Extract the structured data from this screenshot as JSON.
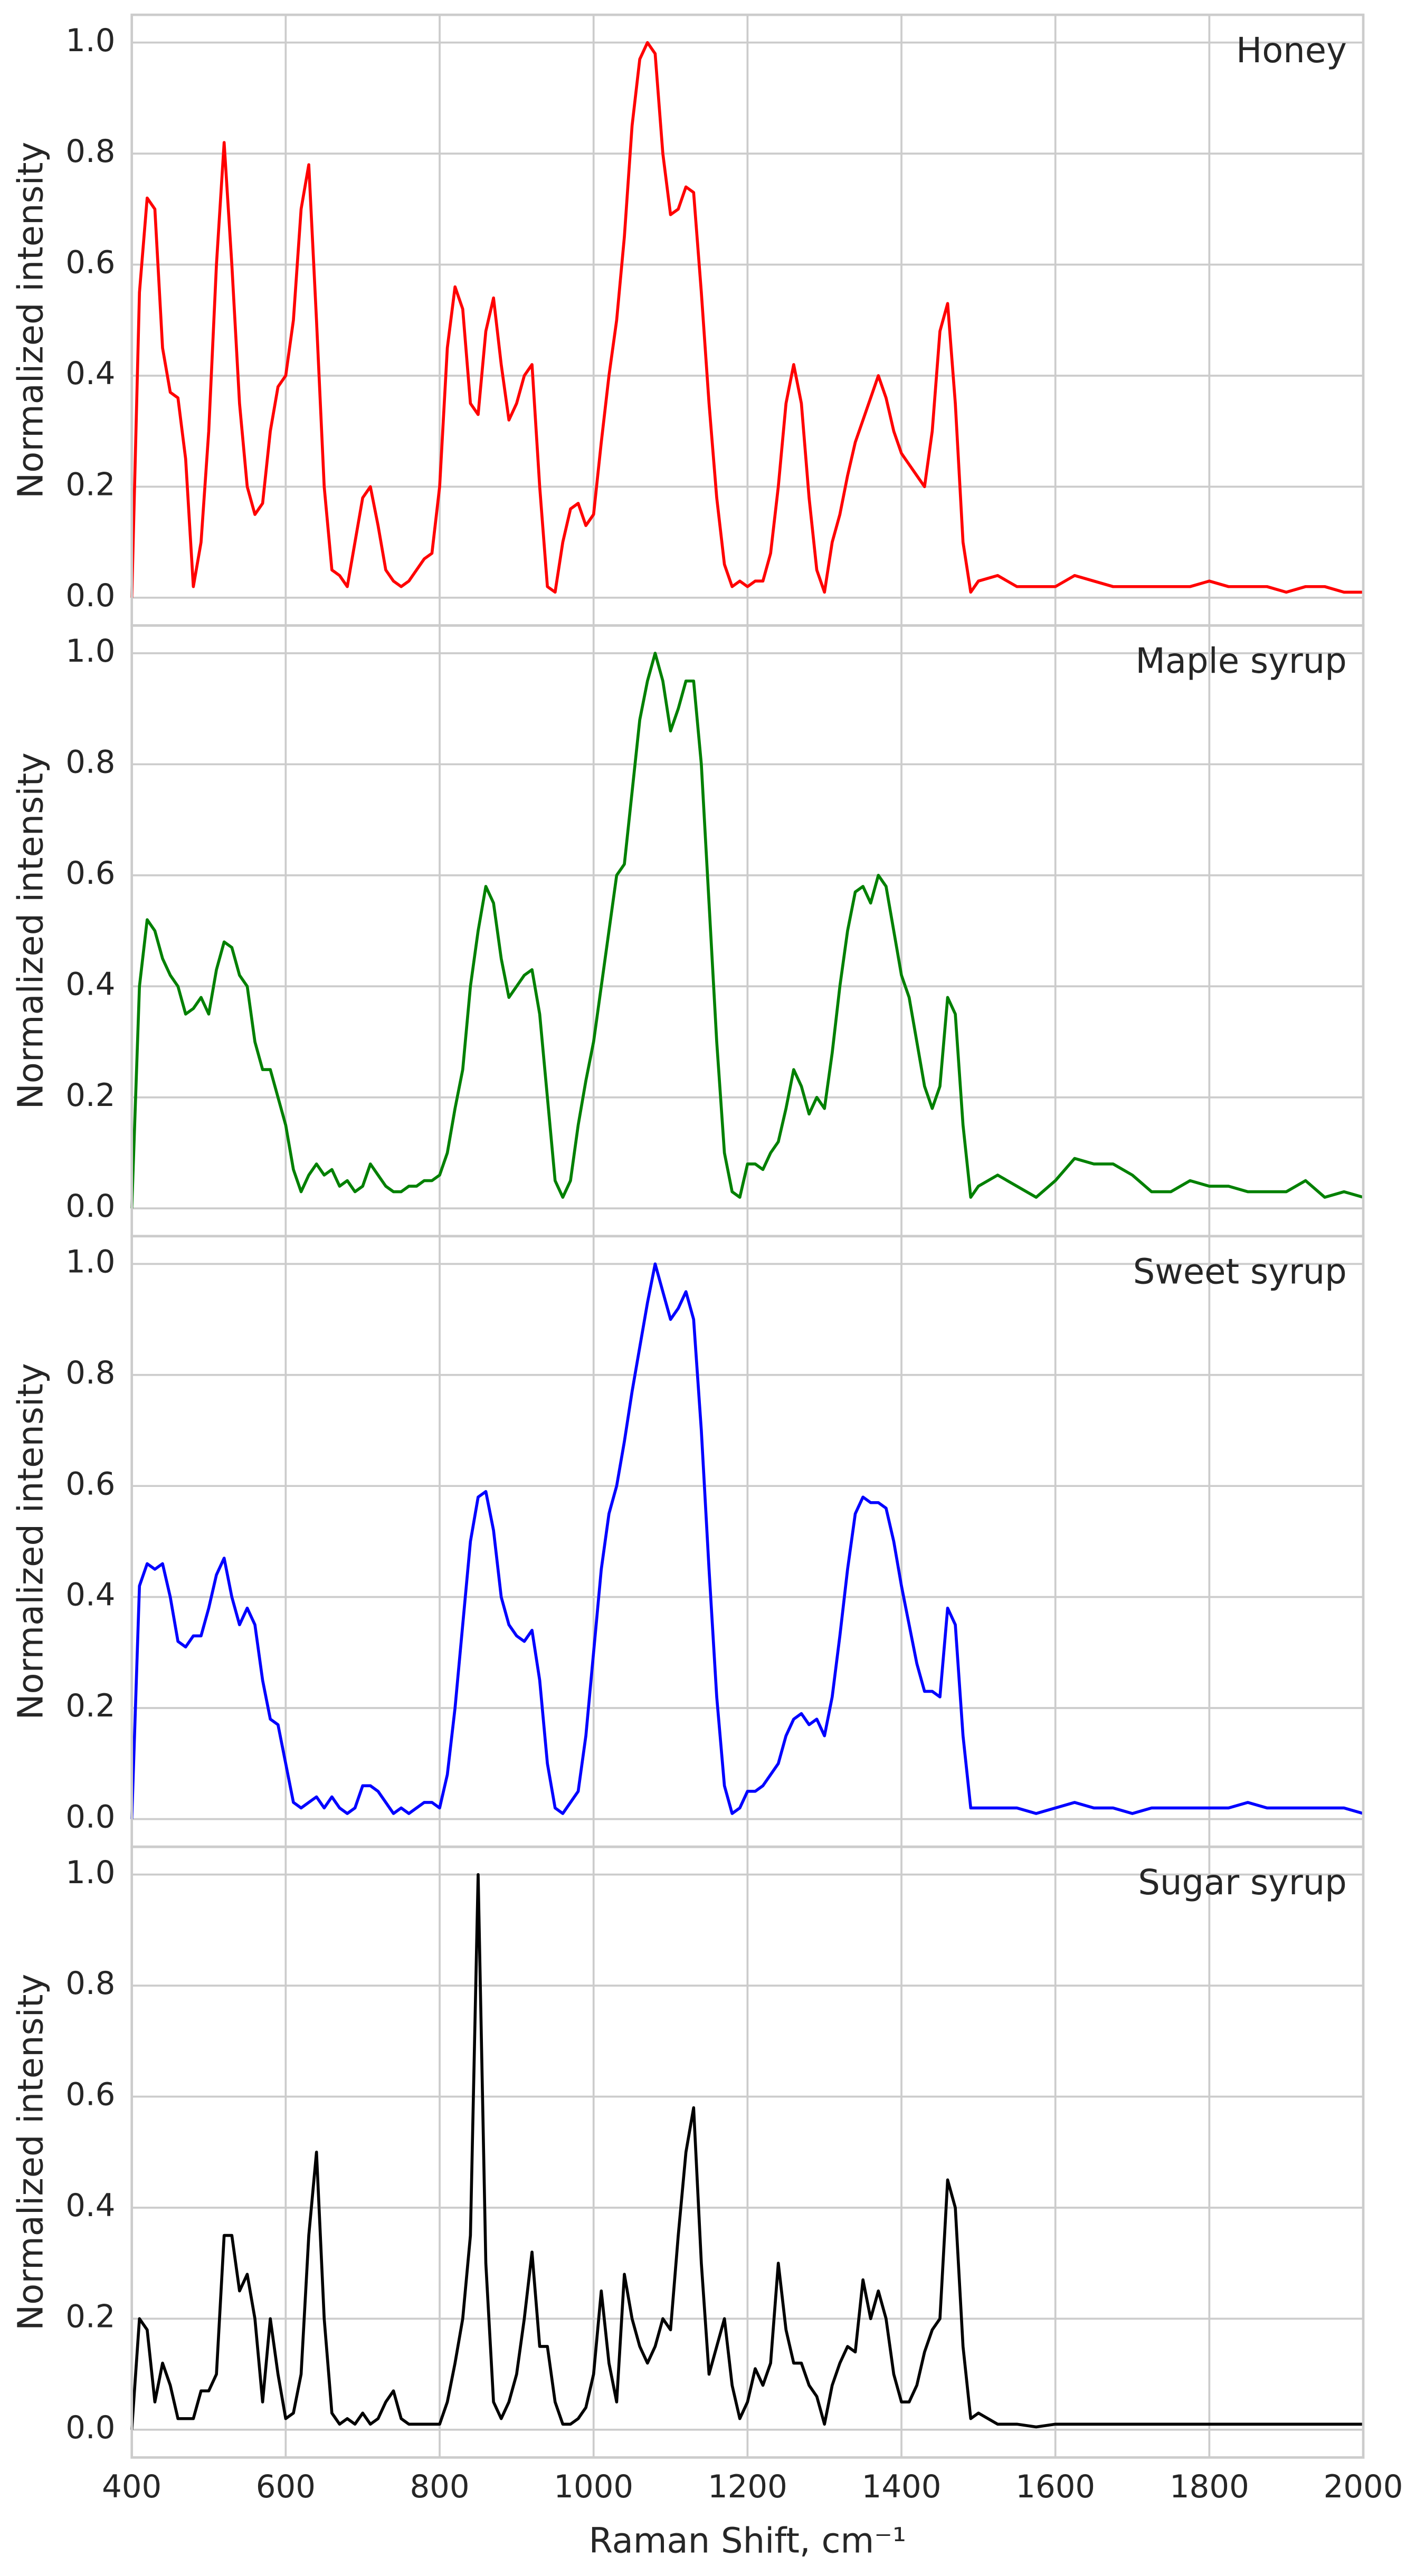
{
  "chart_data": {
    "type": "line",
    "layout": "stacked-panels",
    "grid": true,
    "xlabel": "Raman Shift, cm⁻¹",
    "ylabel": "Normalized intensity",
    "legend": "upper right",
    "xlim": [
      400,
      2000
    ],
    "xticks": [
      400,
      600,
      800,
      1000,
      1200,
      1400,
      1600,
      1800,
      2000
    ],
    "ylim": [
      -0.05,
      1.05
    ],
    "yticks": [
      {
        "value": 0,
        "label": "0.0"
      },
      0.2,
      0.4,
      0.6,
      0.8,
      {
        "value": 1,
        "label": "1.0"
      }
    ],
    "x": [
      400,
      410,
      420,
      430,
      440,
      450,
      460,
      470,
      480,
      490,
      500,
      510,
      520,
      530,
      540,
      550,
      560,
      570,
      580,
      590,
      600,
      610,
      620,
      630,
      640,
      650,
      660,
      670,
      680,
      690,
      700,
      710,
      720,
      730,
      740,
      750,
      760,
      770,
      780,
      790,
      800,
      810,
      820,
      830,
      840,
      850,
      860,
      870,
      880,
      890,
      900,
      910,
      920,
      930,
      940,
      950,
      960,
      970,
      980,
      990,
      1000,
      1010,
      1020,
      1030,
      1040,
      1050,
      1060,
      1070,
      1080,
      1090,
      1100,
      1110,
      1120,
      1130,
      1140,
      1150,
      1160,
      1170,
      1180,
      1190,
      1200,
      1210,
      1220,
      1230,
      1240,
      1250,
      1260,
      1270,
      1280,
      1290,
      1300,
      1310,
      1320,
      1330,
      1340,
      1350,
      1360,
      1370,
      1380,
      1390,
      1400,
      1410,
      1420,
      1430,
      1440,
      1450,
      1460,
      1470,
      1480,
      1490,
      1500,
      1525,
      1550,
      1575,
      1600,
      1625,
      1650,
      1675,
      1700,
      1725,
      1750,
      1775,
      1800,
      1825,
      1850,
      1875,
      1900,
      1925,
      1950,
      1975,
      2000
    ],
    "series": [
      {
        "name": "Honey",
        "color": "#ff0000",
        "values": [
          0.0,
          0.55,
          0.72,
          0.7,
          0.45,
          0.37,
          0.36,
          0.25,
          0.02,
          0.1,
          0.3,
          0.6,
          0.82,
          0.6,
          0.35,
          0.2,
          0.15,
          0.17,
          0.3,
          0.38,
          0.4,
          0.5,
          0.7,
          0.78,
          0.5,
          0.2,
          0.05,
          0.04,
          0.02,
          0.1,
          0.18,
          0.2,
          0.13,
          0.05,
          0.03,
          0.02,
          0.03,
          0.05,
          0.07,
          0.08,
          0.2,
          0.45,
          0.56,
          0.52,
          0.35,
          0.33,
          0.48,
          0.54,
          0.42,
          0.32,
          0.35,
          0.4,
          0.42,
          0.2,
          0.02,
          0.01,
          0.1,
          0.16,
          0.17,
          0.13,
          0.15,
          0.28,
          0.4,
          0.5,
          0.65,
          0.85,
          0.97,
          1.0,
          0.98,
          0.8,
          0.69,
          0.7,
          0.74,
          0.73,
          0.55,
          0.35,
          0.18,
          0.06,
          0.02,
          0.03,
          0.02,
          0.03,
          0.03,
          0.08,
          0.2,
          0.35,
          0.42,
          0.35,
          0.18,
          0.05,
          0.01,
          0.1,
          0.15,
          0.22,
          0.28,
          0.32,
          0.36,
          0.4,
          0.36,
          0.3,
          0.26,
          0.24,
          0.22,
          0.2,
          0.3,
          0.48,
          0.53,
          0.35,
          0.1,
          0.01,
          0.03,
          0.04,
          0.02,
          0.02,
          0.02,
          0.04,
          0.03,
          0.02,
          0.02,
          0.02,
          0.02,
          0.02,
          0.03,
          0.02,
          0.02,
          0.02,
          0.01,
          0.02,
          0.02,
          0.01,
          0.01
        ]
      },
      {
        "name": "Maple syrup",
        "color": "#008000",
        "values": [
          0.0,
          0.4,
          0.52,
          0.5,
          0.45,
          0.42,
          0.4,
          0.35,
          0.36,
          0.38,
          0.35,
          0.43,
          0.48,
          0.47,
          0.42,
          0.4,
          0.3,
          0.25,
          0.25,
          0.2,
          0.15,
          0.07,
          0.03,
          0.06,
          0.08,
          0.06,
          0.07,
          0.04,
          0.05,
          0.03,
          0.04,
          0.08,
          0.06,
          0.04,
          0.03,
          0.03,
          0.04,
          0.04,
          0.05,
          0.05,
          0.06,
          0.1,
          0.18,
          0.25,
          0.4,
          0.5,
          0.58,
          0.55,
          0.45,
          0.38,
          0.4,
          0.42,
          0.43,
          0.35,
          0.2,
          0.05,
          0.02,
          0.05,
          0.15,
          0.23,
          0.3,
          0.4,
          0.5,
          0.6,
          0.62,
          0.75,
          0.88,
          0.95,
          1.0,
          0.95,
          0.86,
          0.9,
          0.95,
          0.95,
          0.8,
          0.55,
          0.3,
          0.1,
          0.03,
          0.02,
          0.08,
          0.08,
          0.07,
          0.1,
          0.12,
          0.18,
          0.25,
          0.22,
          0.17,
          0.2,
          0.18,
          0.28,
          0.4,
          0.5,
          0.57,
          0.58,
          0.55,
          0.6,
          0.58,
          0.5,
          0.42,
          0.38,
          0.3,
          0.22,
          0.18,
          0.22,
          0.38,
          0.35,
          0.15,
          0.02,
          0.04,
          0.06,
          0.04,
          0.02,
          0.05,
          0.09,
          0.08,
          0.08,
          0.06,
          0.03,
          0.03,
          0.05,
          0.04,
          0.04,
          0.03,
          0.03,
          0.03,
          0.05,
          0.02,
          0.03,
          0.02
        ]
      },
      {
        "name": "Sweet syrup",
        "color": "#0000ff",
        "values": [
          0.0,
          0.42,
          0.46,
          0.45,
          0.46,
          0.4,
          0.32,
          0.31,
          0.33,
          0.33,
          0.38,
          0.44,
          0.47,
          0.4,
          0.35,
          0.38,
          0.35,
          0.25,
          0.18,
          0.17,
          0.1,
          0.03,
          0.02,
          0.03,
          0.04,
          0.02,
          0.04,
          0.02,
          0.01,
          0.02,
          0.06,
          0.06,
          0.05,
          0.03,
          0.01,
          0.02,
          0.01,
          0.02,
          0.03,
          0.03,
          0.02,
          0.08,
          0.2,
          0.35,
          0.5,
          0.58,
          0.59,
          0.52,
          0.4,
          0.35,
          0.33,
          0.32,
          0.34,
          0.25,
          0.1,
          0.02,
          0.01,
          0.03,
          0.05,
          0.15,
          0.3,
          0.45,
          0.55,
          0.6,
          0.68,
          0.77,
          0.85,
          0.93,
          1.0,
          0.95,
          0.9,
          0.92,
          0.95,
          0.9,
          0.7,
          0.45,
          0.22,
          0.06,
          0.01,
          0.02,
          0.05,
          0.05,
          0.06,
          0.08,
          0.1,
          0.15,
          0.18,
          0.19,
          0.17,
          0.18,
          0.15,
          0.22,
          0.33,
          0.45,
          0.55,
          0.58,
          0.57,
          0.57,
          0.56,
          0.5,
          0.42,
          0.35,
          0.28,
          0.23,
          0.23,
          0.22,
          0.38,
          0.35,
          0.15,
          0.02,
          0.02,
          0.02,
          0.02,
          0.01,
          0.02,
          0.03,
          0.02,
          0.02,
          0.01,
          0.02,
          0.02,
          0.02,
          0.02,
          0.02,
          0.03,
          0.02,
          0.02,
          0.02,
          0.02,
          0.02,
          0.01
        ]
      },
      {
        "name": "Sugar syrup",
        "color": "#000000",
        "values": [
          0.0,
          0.2,
          0.18,
          0.05,
          0.12,
          0.08,
          0.02,
          0.02,
          0.02,
          0.07,
          0.07,
          0.1,
          0.35,
          0.35,
          0.25,
          0.28,
          0.2,
          0.05,
          0.2,
          0.1,
          0.02,
          0.03,
          0.1,
          0.35,
          0.5,
          0.2,
          0.03,
          0.01,
          0.02,
          0.01,
          0.03,
          0.01,
          0.02,
          0.05,
          0.07,
          0.02,
          0.01,
          0.01,
          0.01,
          0.01,
          0.01,
          0.05,
          0.12,
          0.2,
          0.35,
          1.0,
          0.3,
          0.05,
          0.02,
          0.05,
          0.1,
          0.2,
          0.32,
          0.15,
          0.15,
          0.05,
          0.01,
          0.01,
          0.02,
          0.04,
          0.1,
          0.25,
          0.12,
          0.05,
          0.28,
          0.2,
          0.15,
          0.12,
          0.15,
          0.2,
          0.18,
          0.35,
          0.5,
          0.58,
          0.3,
          0.1,
          0.15,
          0.2,
          0.08,
          0.02,
          0.05,
          0.11,
          0.08,
          0.12,
          0.3,
          0.18,
          0.12,
          0.12,
          0.08,
          0.06,
          0.01,
          0.08,
          0.12,
          0.15,
          0.14,
          0.27,
          0.2,
          0.25,
          0.2,
          0.1,
          0.05,
          0.05,
          0.08,
          0.14,
          0.18,
          0.2,
          0.45,
          0.4,
          0.15,
          0.02,
          0.03,
          0.01,
          0.01,
          0.005,
          0.01,
          0.01,
          0.01,
          0.01,
          0.01,
          0.01,
          0.01,
          0.01,
          0.01,
          0.01,
          0.01,
          0.01,
          0.01,
          0.01,
          0.01,
          0.01,
          0.01
        ]
      }
    ]
  }
}
